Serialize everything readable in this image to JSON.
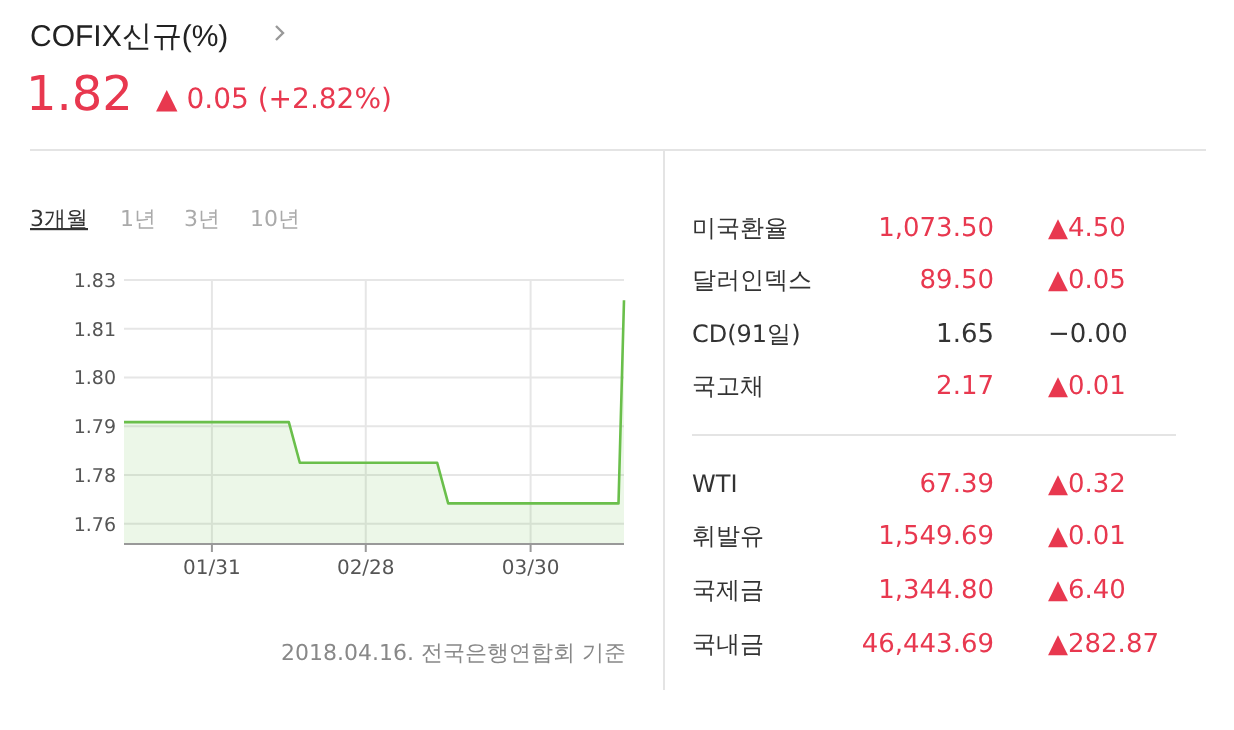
{
  "chart_data": [
    {
      "type": "area",
      "title": "COFIX신규(%)",
      "subtitle": "1.82",
      "annotations": [
        "▲ 0.05 (+2.82%)",
        "3개월",
        "1년",
        "3년",
        "10년",
        "2018.04.16. 전국은행연합회 기준"
      ],
      "x": [
        "2018-01-15",
        "2018-02-14",
        "2018-02-16",
        "2018-03-13",
        "2018-03-15",
        "2018-04-15",
        "2018-04-16"
      ],
      "series": [
        {
          "color": "#6abf4b",
          "values": [
            1.79,
            1.79,
            1.78,
            1.78,
            1.77,
            1.77,
            1.82
          ]
        }
      ],
      "xlim": [
        "2018-01-15",
        "2018-04-16"
      ],
      "xticks": [
        {
          "value": "2018-01-31",
          "label": "01/31"
        },
        {
          "value": "2018-02-28",
          "label": "02/28"
        },
        {
          "value": "2018-03-30",
          "label": "03/30"
        }
      ],
      "ylim": [
        1.76,
        1.825
      ],
      "yticks": [
        {
          "value": 1.765,
          "label": "1.76"
        },
        {
          "value": 1.777,
          "label": "1.78"
        },
        {
          "value": 1.789,
          "label": "1.79"
        },
        {
          "value": 1.801,
          "label": "1.80"
        },
        {
          "value": 1.813,
          "label": "1.81"
        },
        {
          "value": 1.825,
          "label": "1.83"
        }
      ],
      "grid": true,
      "marker": "none",
      "line_style": "solid"
    },
    {
      "type": "other",
      "categories": [
        "미국환율",
        "달러인덱스",
        "CD(91일)",
        "국고채",
        "WTI",
        "휘발유",
        "국제금",
        "국내금"
      ],
      "series": [
        {
          "values": [
            1073.5,
            89.5,
            1.65,
            2.17,
            67.39,
            1549.69,
            1344.8,
            46443.69
          ],
          "value_labels": [
            "1,073.50",
            "89.50",
            "1.65",
            "2.17",
            "67.39",
            "1,549.69",
            "1,344.80",
            "46,443.69"
          ],
          "colors": [
            "#e8384f",
            "#e8384f",
            "#333333",
            "#e8384f",
            "#e8384f",
            "#e8384f",
            "#e8384f",
            "#e8384f"
          ]
        },
        {
          "values": [
            4.5,
            0.05,
            0,
            0.01,
            0.32,
            0.01,
            6.4,
            282.87
          ],
          "value_labels": [
            "▲4.50",
            "▲0.05",
            "−0.00",
            "▲0.01",
            "▲0.32",
            "▲0.01",
            "▲6.40",
            "▲282.87"
          ],
          "colors": [
            "#e8384f",
            "#e8384f",
            "#333333",
            "#e8384f",
            "#e8384f",
            "#e8384f",
            "#e8384f",
            "#e8384f"
          ]
        }
      ]
    }
  ]
}
